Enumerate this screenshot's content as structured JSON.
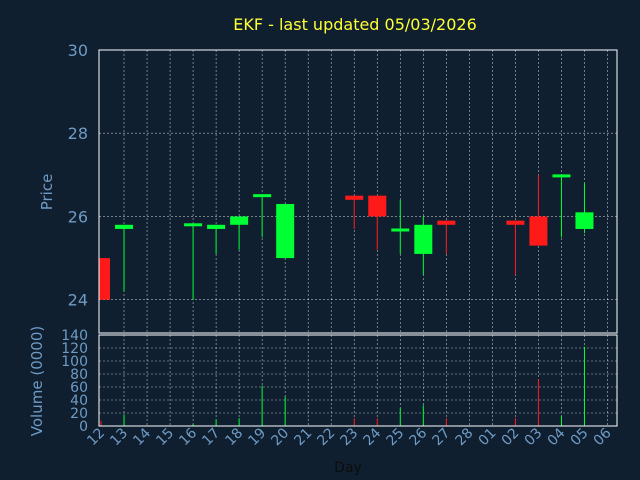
{
  "colors": {
    "background": "#0f1f30",
    "plot_background": "#0f1f30",
    "title": "#ffff33",
    "axis_text": "#6f9bc4",
    "axis_label": "#6f9bc4",
    "frame": "#ffffff",
    "grid": "#ffffff",
    "up": "#00ff33",
    "down": "#ff1a1a"
  },
  "chart_data": [
    {
      "type": "candlestick",
      "title": "EKF - last updated 05/03/2026",
      "ylabel": "Price",
      "ylim": [
        23.2,
        30
      ],
      "yticks": [
        24,
        26,
        28,
        30
      ],
      "grid": true,
      "categories": [
        "12",
        "13",
        "14",
        "15",
        "16",
        "17",
        "18",
        "19",
        "20",
        "21",
        "22",
        "23",
        "24",
        "25",
        "26",
        "27",
        "28",
        "01",
        "02",
        "03",
        "04",
        "05",
        "06"
      ],
      "candles": [
        {
          "day": "12",
          "open": 25.0,
          "high": 25.0,
          "low": 24.0,
          "close": 24.0,
          "dir": "down"
        },
        {
          "day": "13",
          "open": 25.7,
          "high": 25.8,
          "low": 24.2,
          "close": 25.8,
          "dir": "up"
        },
        {
          "day": "16",
          "open": 25.8,
          "high": 25.8,
          "low": 24.0,
          "close": 25.8,
          "dir": "up"
        },
        {
          "day": "17",
          "open": 25.7,
          "high": 25.8,
          "low": 25.1,
          "close": 25.8,
          "dir": "up"
        },
        {
          "day": "18",
          "open": 25.8,
          "high": 26.0,
          "low": 25.2,
          "close": 26.0,
          "dir": "up"
        },
        {
          "day": "19",
          "open": 26.5,
          "high": 26.5,
          "low": 25.5,
          "close": 26.5,
          "dir": "up"
        },
        {
          "day": "20",
          "open": 25.0,
          "high": 26.3,
          "low": 25.0,
          "close": 26.3,
          "dir": "up"
        },
        {
          "day": "23",
          "open": 26.5,
          "high": 26.5,
          "low": 25.7,
          "close": 26.4,
          "dir": "down"
        },
        {
          "day": "24",
          "open": 26.5,
          "high": 26.5,
          "low": 25.2,
          "close": 26.0,
          "dir": "down"
        },
        {
          "day": "25",
          "open": 25.65,
          "high": 26.4,
          "low": 25.1,
          "close": 25.7,
          "dir": "up"
        },
        {
          "day": "26",
          "open": 25.1,
          "high": 26.0,
          "low": 24.6,
          "close": 25.8,
          "dir": "up"
        },
        {
          "day": "27",
          "open": 25.9,
          "high": 25.9,
          "low": 25.1,
          "close": 25.8,
          "dir": "down"
        },
        {
          "day": "02",
          "open": 25.9,
          "high": 25.9,
          "low": 24.6,
          "close": 25.8,
          "dir": "down"
        },
        {
          "day": "03",
          "open": 26.0,
          "high": 27.0,
          "low": 25.3,
          "close": 25.3,
          "dir": "down"
        },
        {
          "day": "04",
          "open": 26.95,
          "high": 27.0,
          "low": 25.5,
          "close": 27.0,
          "dir": "up"
        },
        {
          "day": "05",
          "open": 25.7,
          "high": 26.8,
          "low": 25.6,
          "close": 26.1,
          "dir": "up"
        }
      ]
    },
    {
      "type": "bar",
      "ylabel": "Volume (0000)",
      "xlabel": "Day",
      "ylim": [
        0,
        140
      ],
      "yticks": [
        0,
        20,
        40,
        60,
        80,
        100,
        120,
        140
      ],
      "grid": true,
      "categories": [
        "12",
        "13",
        "14",
        "15",
        "16",
        "17",
        "18",
        "19",
        "20",
        "21",
        "22",
        "23",
        "24",
        "25",
        "26",
        "27",
        "28",
        "01",
        "02",
        "03",
        "04",
        "05",
        "06"
      ],
      "bars": [
        {
          "day": "12",
          "value": 8,
          "dir": "down"
        },
        {
          "day": "13",
          "value": 18,
          "dir": "up"
        },
        {
          "day": "16",
          "value": 3,
          "dir": "up"
        },
        {
          "day": "17",
          "value": 10,
          "dir": "up"
        },
        {
          "day": "18",
          "value": 12,
          "dir": "up"
        },
        {
          "day": "19",
          "value": 62,
          "dir": "up"
        },
        {
          "day": "20",
          "value": 45,
          "dir": "up"
        },
        {
          "day": "23",
          "value": 12,
          "dir": "down"
        },
        {
          "day": "24",
          "value": 12,
          "dir": "down"
        },
        {
          "day": "25",
          "value": 28,
          "dir": "up"
        },
        {
          "day": "26",
          "value": 32,
          "dir": "up"
        },
        {
          "day": "27",
          "value": 12,
          "dir": "down"
        },
        {
          "day": "02",
          "value": 12,
          "dir": "down"
        },
        {
          "day": "03",
          "value": 72,
          "dir": "down"
        },
        {
          "day": "04",
          "value": 15,
          "dir": "up"
        },
        {
          "day": "05",
          "value": 122,
          "dir": "up"
        }
      ]
    }
  ]
}
